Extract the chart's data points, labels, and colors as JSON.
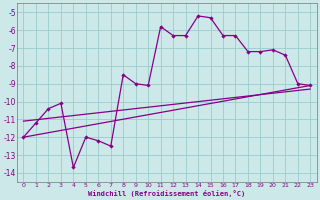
{
  "xlabel": "Windchill (Refroidissement éolien,°C)",
  "bg_color": "#cce8e8",
  "grid_color": "#99cccc",
  "line_color": "#880088",
  "xlim": [
    -0.5,
    23.5
  ],
  "ylim": [
    -14.5,
    -4.5
  ],
  "yticks": [
    -14,
    -13,
    -12,
    -11,
    -10,
    -9,
    -8,
    -7,
    -6,
    -5
  ],
  "xticks": [
    0,
    1,
    2,
    3,
    4,
    5,
    6,
    7,
    8,
    9,
    10,
    11,
    12,
    13,
    14,
    15,
    16,
    17,
    18,
    19,
    20,
    21,
    22,
    23
  ],
  "curve1_x": [
    0,
    1,
    2,
    3,
    4,
    5,
    6,
    7,
    8,
    9,
    10,
    11,
    12,
    13,
    14,
    15,
    16,
    17,
    18,
    19,
    20,
    21,
    22,
    23
  ],
  "curve1_y": [
    -12,
    -11.2,
    -10.4,
    -10.1,
    -13.7,
    -12,
    -12.2,
    -12.5,
    -8.5,
    -9,
    -9.1,
    -5.8,
    -6.3,
    -6.3,
    -5.2,
    -5.3,
    -6.3,
    -6.3,
    -7.2,
    -7.2,
    -7.1,
    -7.4,
    -9,
    -9.1
  ],
  "line1_x": [
    0,
    23
  ],
  "line1_y": [
    -12.0,
    -9.1
  ],
  "line2_x": [
    0,
    23
  ],
  "line2_y": [
    -11.1,
    -9.3
  ]
}
